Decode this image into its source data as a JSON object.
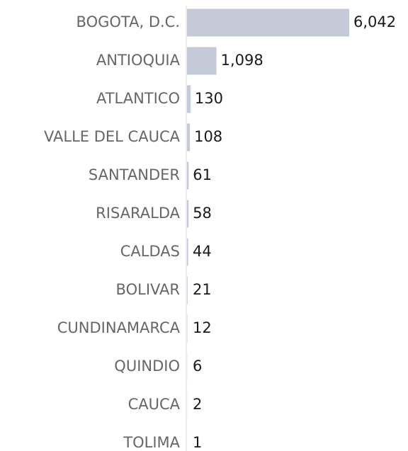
{
  "chart_data": {
    "type": "barh",
    "categories": [
      "BOGOTA, D.C.",
      "ANTIOQUIA",
      "ATLANTICO",
      "VALLE DEL CAUCA",
      "SANTANDER",
      "RISARALDA",
      "CALDAS",
      "BOLIVAR",
      "CUNDINAMARCA",
      "QUINDIO",
      "CAUCA",
      "TOLIMA"
    ],
    "values": [
      6042,
      1098,
      130,
      108,
      61,
      58,
      44,
      21,
      12,
      6,
      2,
      1
    ],
    "value_labels": [
      "6,042",
      "1,098",
      "130",
      "108",
      "61",
      "58",
      "44",
      "21",
      "12",
      "6",
      "2",
      "1"
    ],
    "color": "#c5cad9"
  }
}
